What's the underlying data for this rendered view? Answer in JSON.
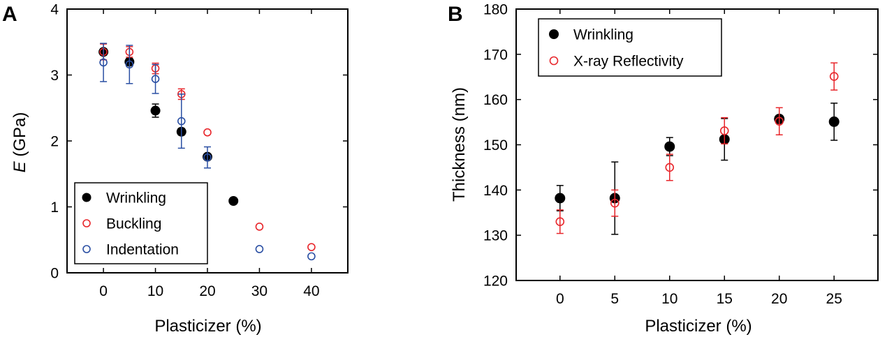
{
  "chart_data": [
    {
      "panel": "A",
      "type": "scatter",
      "xlabel": "Plasticizer (%)",
      "ylabel_italic": "E",
      "ylabel_rest": " (GPa)",
      "xlim": [
        -7,
        47
      ],
      "ylim": [
        0,
        4
      ],
      "xticks": [
        0,
        10,
        20,
        30,
        40
      ],
      "yticks": [
        0,
        1,
        2,
        3,
        4
      ],
      "legend_position": "bottom-left",
      "series": [
        {
          "name": "Wrinkling",
          "marker": "filled",
          "color": "#000000",
          "points": [
            {
              "x": 0,
              "y": 3.35,
              "err": 0.05
            },
            {
              "x": 5,
              "y": 3.2,
              "err": 0.05
            },
            {
              "x": 10,
              "y": 2.46,
              "err": 0.1
            },
            {
              "x": 15,
              "y": 2.14,
              "err": 0.05
            },
            {
              "x": 20,
              "y": 1.76,
              "err": 0.03
            },
            {
              "x": 25,
              "y": 1.09,
              "err": 0
            }
          ]
        },
        {
          "name": "Buckling",
          "marker": "open",
          "color": "#e8262b",
          "points": [
            {
              "x": 0,
              "y": 3.35,
              "err": 0.12
            },
            {
              "x": 5,
              "y": 3.35,
              "err": 0.08
            },
            {
              "x": 10,
              "y": 3.1,
              "err": 0.08
            },
            {
              "x": 15,
              "y": 2.71,
              "err": 0.08
            },
            {
              "x": 20,
              "y": 2.13,
              "err": 0
            },
            {
              "x": 30,
              "y": 0.7,
              "err": 0
            },
            {
              "x": 40,
              "y": 0.39,
              "err": 0
            }
          ]
        },
        {
          "name": "Indentation",
          "marker": "open",
          "color": "#2a4fa3",
          "points": [
            {
              "x": 0,
              "y": 3.19,
              "err": 0.29
            },
            {
              "x": 5,
              "y": 3.16,
              "err": 0.29
            },
            {
              "x": 10,
              "y": 2.94,
              "err": 0.22
            },
            {
              "x": 15,
              "y": 2.3,
              "err": 0.41
            },
            {
              "x": 20,
              "y": 1.75,
              "err": 0.16
            },
            {
              "x": 30,
              "y": 0.36,
              "err": 0
            },
            {
              "x": 40,
              "y": 0.25,
              "err": 0
            }
          ]
        }
      ]
    },
    {
      "panel": "B",
      "type": "scatter",
      "xlabel": "Plasticizer (%)",
      "ylabel": "Thickness (nm)",
      "xlim": [
        -4,
        29
      ],
      "ylim": [
        120,
        180
      ],
      "xticks": [
        0,
        5,
        10,
        15,
        20,
        25
      ],
      "yticks": [
        120,
        130,
        140,
        150,
        160,
        170,
        180
      ],
      "legend_position": "top-left",
      "series": [
        {
          "name": "Wrinkling",
          "marker": "filled",
          "color": "#000000",
          "points": [
            {
              "x": 0,
              "y": 138.2,
              "err": 2.8
            },
            {
              "x": 5,
              "y": 138.2,
              "err": 8.0
            },
            {
              "x": 10,
              "y": 149.6,
              "err": 2.0
            },
            {
              "x": 15,
              "y": 151.2,
              "err": 4.6
            },
            {
              "x": 20,
              "y": 155.7,
              "err": 0.8
            },
            {
              "x": 25,
              "y": 155.1,
              "err": 4.1
            }
          ]
        },
        {
          "name": "X-ray Reflectivity",
          "marker": "open",
          "color": "#e8262b",
          "points": [
            {
              "x": 0,
              "y": 133.0,
              "err": 2.6
            },
            {
              "x": 5,
              "y": 137.1,
              "err": 2.9
            },
            {
              "x": 10,
              "y": 145.0,
              "err": 2.9
            },
            {
              "x": 15,
              "y": 153.1,
              "err": 2.9
            },
            {
              "x": 20,
              "y": 155.2,
              "err": 3.0
            },
            {
              "x": 25,
              "y": 165.1,
              "err": 3.0
            }
          ]
        }
      ]
    }
  ]
}
